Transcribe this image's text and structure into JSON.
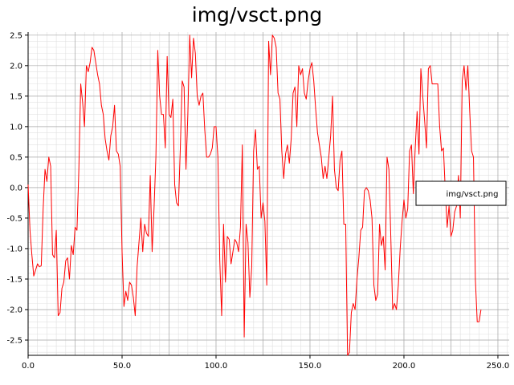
{
  "chart_data": {
    "type": "line",
    "title": "img/vsct.png",
    "xlabel": "",
    "ylabel": "",
    "xlim": [
      0,
      256
    ],
    "ylim": [
      -2.75,
      2.55
    ],
    "x_ticks": [
      "0.0",
      "50.0",
      "100.0",
      "150.0",
      "200.0",
      "250.0"
    ],
    "x_tick_values": [
      0,
      50,
      100,
      150,
      200,
      250
    ],
    "y_ticks": [
      "2.5",
      "2.0",
      "1.5",
      "1.0",
      "0.5",
      "0.0",
      "-0.5",
      "-1.0",
      "-1.5",
      "-2.0",
      "-2.5"
    ],
    "y_tick_values": [
      2.5,
      2.0,
      1.5,
      1.0,
      0.5,
      0.0,
      -0.5,
      -1.0,
      -1.5,
      -2.0,
      -2.5
    ],
    "grid": true,
    "legend_position": "right",
    "series": [
      {
        "name": "img/vsct.png",
        "color": "#ff0000",
        "points": [
          [
            0,
            0.05
          ],
          [
            1,
            -0.7
          ],
          [
            2,
            -1.1
          ],
          [
            3,
            -1.45
          ],
          [
            4,
            -1.35
          ],
          [
            5,
            -1.25
          ],
          [
            6,
            -1.3
          ],
          [
            7,
            -1.28
          ],
          [
            8,
            -0.35
          ],
          [
            9,
            0.3
          ],
          [
            10,
            0.1
          ],
          [
            11,
            0.5
          ],
          [
            12,
            0.35
          ],
          [
            13,
            -1.1
          ],
          [
            14,
            -1.15
          ],
          [
            15,
            -0.7
          ],
          [
            16,
            -2.1
          ],
          [
            17,
            -2.05
          ],
          [
            18,
            -1.65
          ],
          [
            19,
            -1.55
          ],
          [
            20,
            -1.2
          ],
          [
            21,
            -1.15
          ],
          [
            22,
            -1.5
          ],
          [
            23,
            -0.95
          ],
          [
            24,
            -1.1
          ],
          [
            25,
            -0.65
          ],
          [
            26,
            -0.7
          ],
          [
            27,
            0.3
          ],
          [
            28,
            1.7
          ],
          [
            29,
            1.4
          ],
          [
            30,
            1.0
          ],
          [
            31,
            2.0
          ],
          [
            32,
            1.9
          ],
          [
            33,
            2.05
          ],
          [
            34,
            2.3
          ],
          [
            35,
            2.25
          ],
          [
            36,
            2.05
          ],
          [
            37,
            1.85
          ],
          [
            38,
            1.7
          ],
          [
            39,
            1.35
          ],
          [
            40,
            1.2
          ],
          [
            41,
            0.8
          ],
          [
            42,
            0.6
          ],
          [
            43,
            0.45
          ],
          [
            44,
            0.85
          ],
          [
            45,
            1.0
          ],
          [
            46,
            1.35
          ],
          [
            47,
            0.6
          ],
          [
            48,
            0.55
          ],
          [
            49,
            0.35
          ],
          [
            50,
            -1.05
          ],
          [
            51,
            -1.95
          ],
          [
            52,
            -1.7
          ],
          [
            53,
            -1.85
          ],
          [
            54,
            -1.55
          ],
          [
            55,
            -1.6
          ],
          [
            56,
            -1.8
          ],
          [
            57,
            -2.1
          ],
          [
            58,
            -1.3
          ],
          [
            59,
            -0.9
          ],
          [
            60,
            -0.5
          ],
          [
            61,
            -1.05
          ],
          [
            62,
            -0.6
          ],
          [
            63,
            -0.75
          ],
          [
            64,
            -0.8
          ],
          [
            65,
            0.2
          ],
          [
            66,
            -1.05
          ],
          [
            67,
            -0.35
          ],
          [
            68,
            0.5
          ],
          [
            69,
            2.25
          ],
          [
            70,
            1.5
          ],
          [
            71,
            1.2
          ],
          [
            72,
            1.2
          ],
          [
            73,
            0.65
          ],
          [
            74,
            2.15
          ],
          [
            75,
            1.2
          ],
          [
            76,
            1.15
          ],
          [
            77,
            1.45
          ],
          [
            78,
            0.05
          ],
          [
            79,
            -0.25
          ],
          [
            80,
            -0.3
          ],
          [
            81,
            0.65
          ],
          [
            82,
            1.75
          ],
          [
            83,
            1.65
          ],
          [
            84,
            0.3
          ],
          [
            85,
            1.2
          ],
          [
            86,
            2.5
          ],
          [
            87,
            1.8
          ],
          [
            88,
            2.45
          ],
          [
            89,
            2.2
          ],
          [
            90,
            1.5
          ],
          [
            91,
            1.35
          ],
          [
            92,
            1.5
          ],
          [
            93,
            1.55
          ],
          [
            94,
            0.95
          ],
          [
            95,
            0.5
          ],
          [
            96,
            0.5
          ],
          [
            97,
            0.55
          ],
          [
            98,
            0.65
          ],
          [
            99,
            1.0
          ],
          [
            100,
            1.0
          ],
          [
            101,
            0.5
          ],
          [
            102,
            -1.2
          ],
          [
            103,
            -2.1
          ],
          [
            104,
            -0.6
          ],
          [
            105,
            -1.55
          ],
          [
            106,
            -0.8
          ],
          [
            107,
            -0.85
          ],
          [
            108,
            -1.25
          ],
          [
            109,
            -1.05
          ],
          [
            110,
            -0.85
          ],
          [
            111,
            -0.9
          ],
          [
            112,
            -1.05
          ],
          [
            113,
            -0.65
          ],
          [
            114,
            0.7
          ],
          [
            115,
            -2.45
          ],
          [
            116,
            -0.6
          ],
          [
            117,
            -0.9
          ],
          [
            118,
            -1.8
          ],
          [
            119,
            -1.3
          ],
          [
            120,
            0.6
          ],
          [
            121,
            0.95
          ],
          [
            122,
            0.3
          ],
          [
            123,
            0.35
          ],
          [
            124,
            -0.5
          ],
          [
            125,
            -0.25
          ],
          [
            126,
            -0.55
          ],
          [
            127,
            -1.6
          ],
          [
            128,
            2.4
          ],
          [
            129,
            1.85
          ],
          [
            130,
            2.5
          ],
          [
            131,
            2.45
          ],
          [
            132,
            2.3
          ],
          [
            133,
            1.55
          ],
          [
            134,
            1.45
          ],
          [
            135,
            0.6
          ],
          [
            136,
            0.15
          ],
          [
            137,
            0.55
          ],
          [
            138,
            0.7
          ],
          [
            139,
            0.4
          ],
          [
            140,
            0.8
          ],
          [
            141,
            1.55
          ],
          [
            142,
            1.65
          ],
          [
            143,
            1.0
          ],
          [
            144,
            2.0
          ],
          [
            145,
            1.85
          ],
          [
            146,
            1.95
          ],
          [
            147,
            1.55
          ],
          [
            148,
            1.45
          ],
          [
            149,
            1.75
          ],
          [
            150,
            1.95
          ],
          [
            151,
            2.05
          ],
          [
            152,
            1.75
          ],
          [
            153,
            1.3
          ],
          [
            154,
            0.9
          ],
          [
            155,
            0.7
          ],
          [
            156,
            0.5
          ],
          [
            157,
            0.15
          ],
          [
            158,
            0.35
          ],
          [
            159,
            0.15
          ],
          [
            160,
            0.5
          ],
          [
            161,
            0.85
          ],
          [
            162,
            1.5
          ],
          [
            163,
            0.3
          ],
          [
            164,
            0.0
          ],
          [
            165,
            -0.05
          ],
          [
            166,
            0.45
          ],
          [
            167,
            0.6
          ],
          [
            168,
            -0.6
          ],
          [
            169,
            -0.6
          ],
          [
            170,
            -2.75
          ],
          [
            171,
            -2.7
          ],
          [
            172,
            -2.05
          ],
          [
            173,
            -1.9
          ],
          [
            174,
            -2.0
          ],
          [
            175,
            -1.5
          ],
          [
            176,
            -1.15
          ],
          [
            177,
            -0.7
          ],
          [
            178,
            -0.65
          ],
          [
            179,
            -0.05
          ],
          [
            180,
            0.0
          ],
          [
            181,
            -0.05
          ],
          [
            182,
            -0.2
          ],
          [
            183,
            -0.5
          ],
          [
            184,
            -1.6
          ],
          [
            185,
            -1.85
          ],
          [
            186,
            -1.75
          ],
          [
            187,
            -0.6
          ],
          [
            188,
            -0.95
          ],
          [
            189,
            -0.8
          ],
          [
            190,
            -1.35
          ],
          [
            191,
            0.5
          ],
          [
            192,
            0.3
          ],
          [
            193,
            -0.8
          ],
          [
            194,
            -2.0
          ],
          [
            195,
            -1.9
          ],
          [
            196,
            -2.0
          ],
          [
            197,
            -1.6
          ],
          [
            198,
            -1.0
          ],
          [
            199,
            -0.55
          ],
          [
            200,
            -0.2
          ],
          [
            201,
            -0.5
          ],
          [
            202,
            -0.35
          ],
          [
            203,
            0.6
          ],
          [
            204,
            0.7
          ],
          [
            205,
            -0.1
          ],
          [
            206,
            0.65
          ],
          [
            207,
            1.25
          ],
          [
            208,
            0.55
          ],
          [
            209,
            1.95
          ],
          [
            210,
            1.5
          ],
          [
            211,
            1.1
          ],
          [
            212,
            0.65
          ],
          [
            213,
            1.95
          ],
          [
            214,
            2.0
          ],
          [
            215,
            1.7
          ],
          [
            216,
            1.7
          ],
          [
            217,
            1.7
          ],
          [
            218,
            1.7
          ],
          [
            219,
            1.0
          ],
          [
            220,
            0.6
          ],
          [
            221,
            0.65
          ],
          [
            222,
            -0.05
          ],
          [
            223,
            -0.65
          ],
          [
            224,
            -0.3
          ],
          [
            225,
            -0.8
          ],
          [
            226,
            -0.7
          ],
          [
            227,
            -0.4
          ],
          [
            228,
            -0.3
          ],
          [
            229,
            0.2
          ],
          [
            230,
            -0.5
          ],
          [
            231,
            1.75
          ],
          [
            232,
            2.0
          ],
          [
            233,
            1.6
          ],
          [
            234,
            2.0
          ],
          [
            235,
            1.25
          ],
          [
            236,
            0.6
          ],
          [
            237,
            0.5
          ],
          [
            238,
            -1.5
          ],
          [
            239,
            -2.2
          ],
          [
            240,
            -2.2
          ],
          [
            241,
            -2.0
          ]
        ]
      }
    ]
  }
}
